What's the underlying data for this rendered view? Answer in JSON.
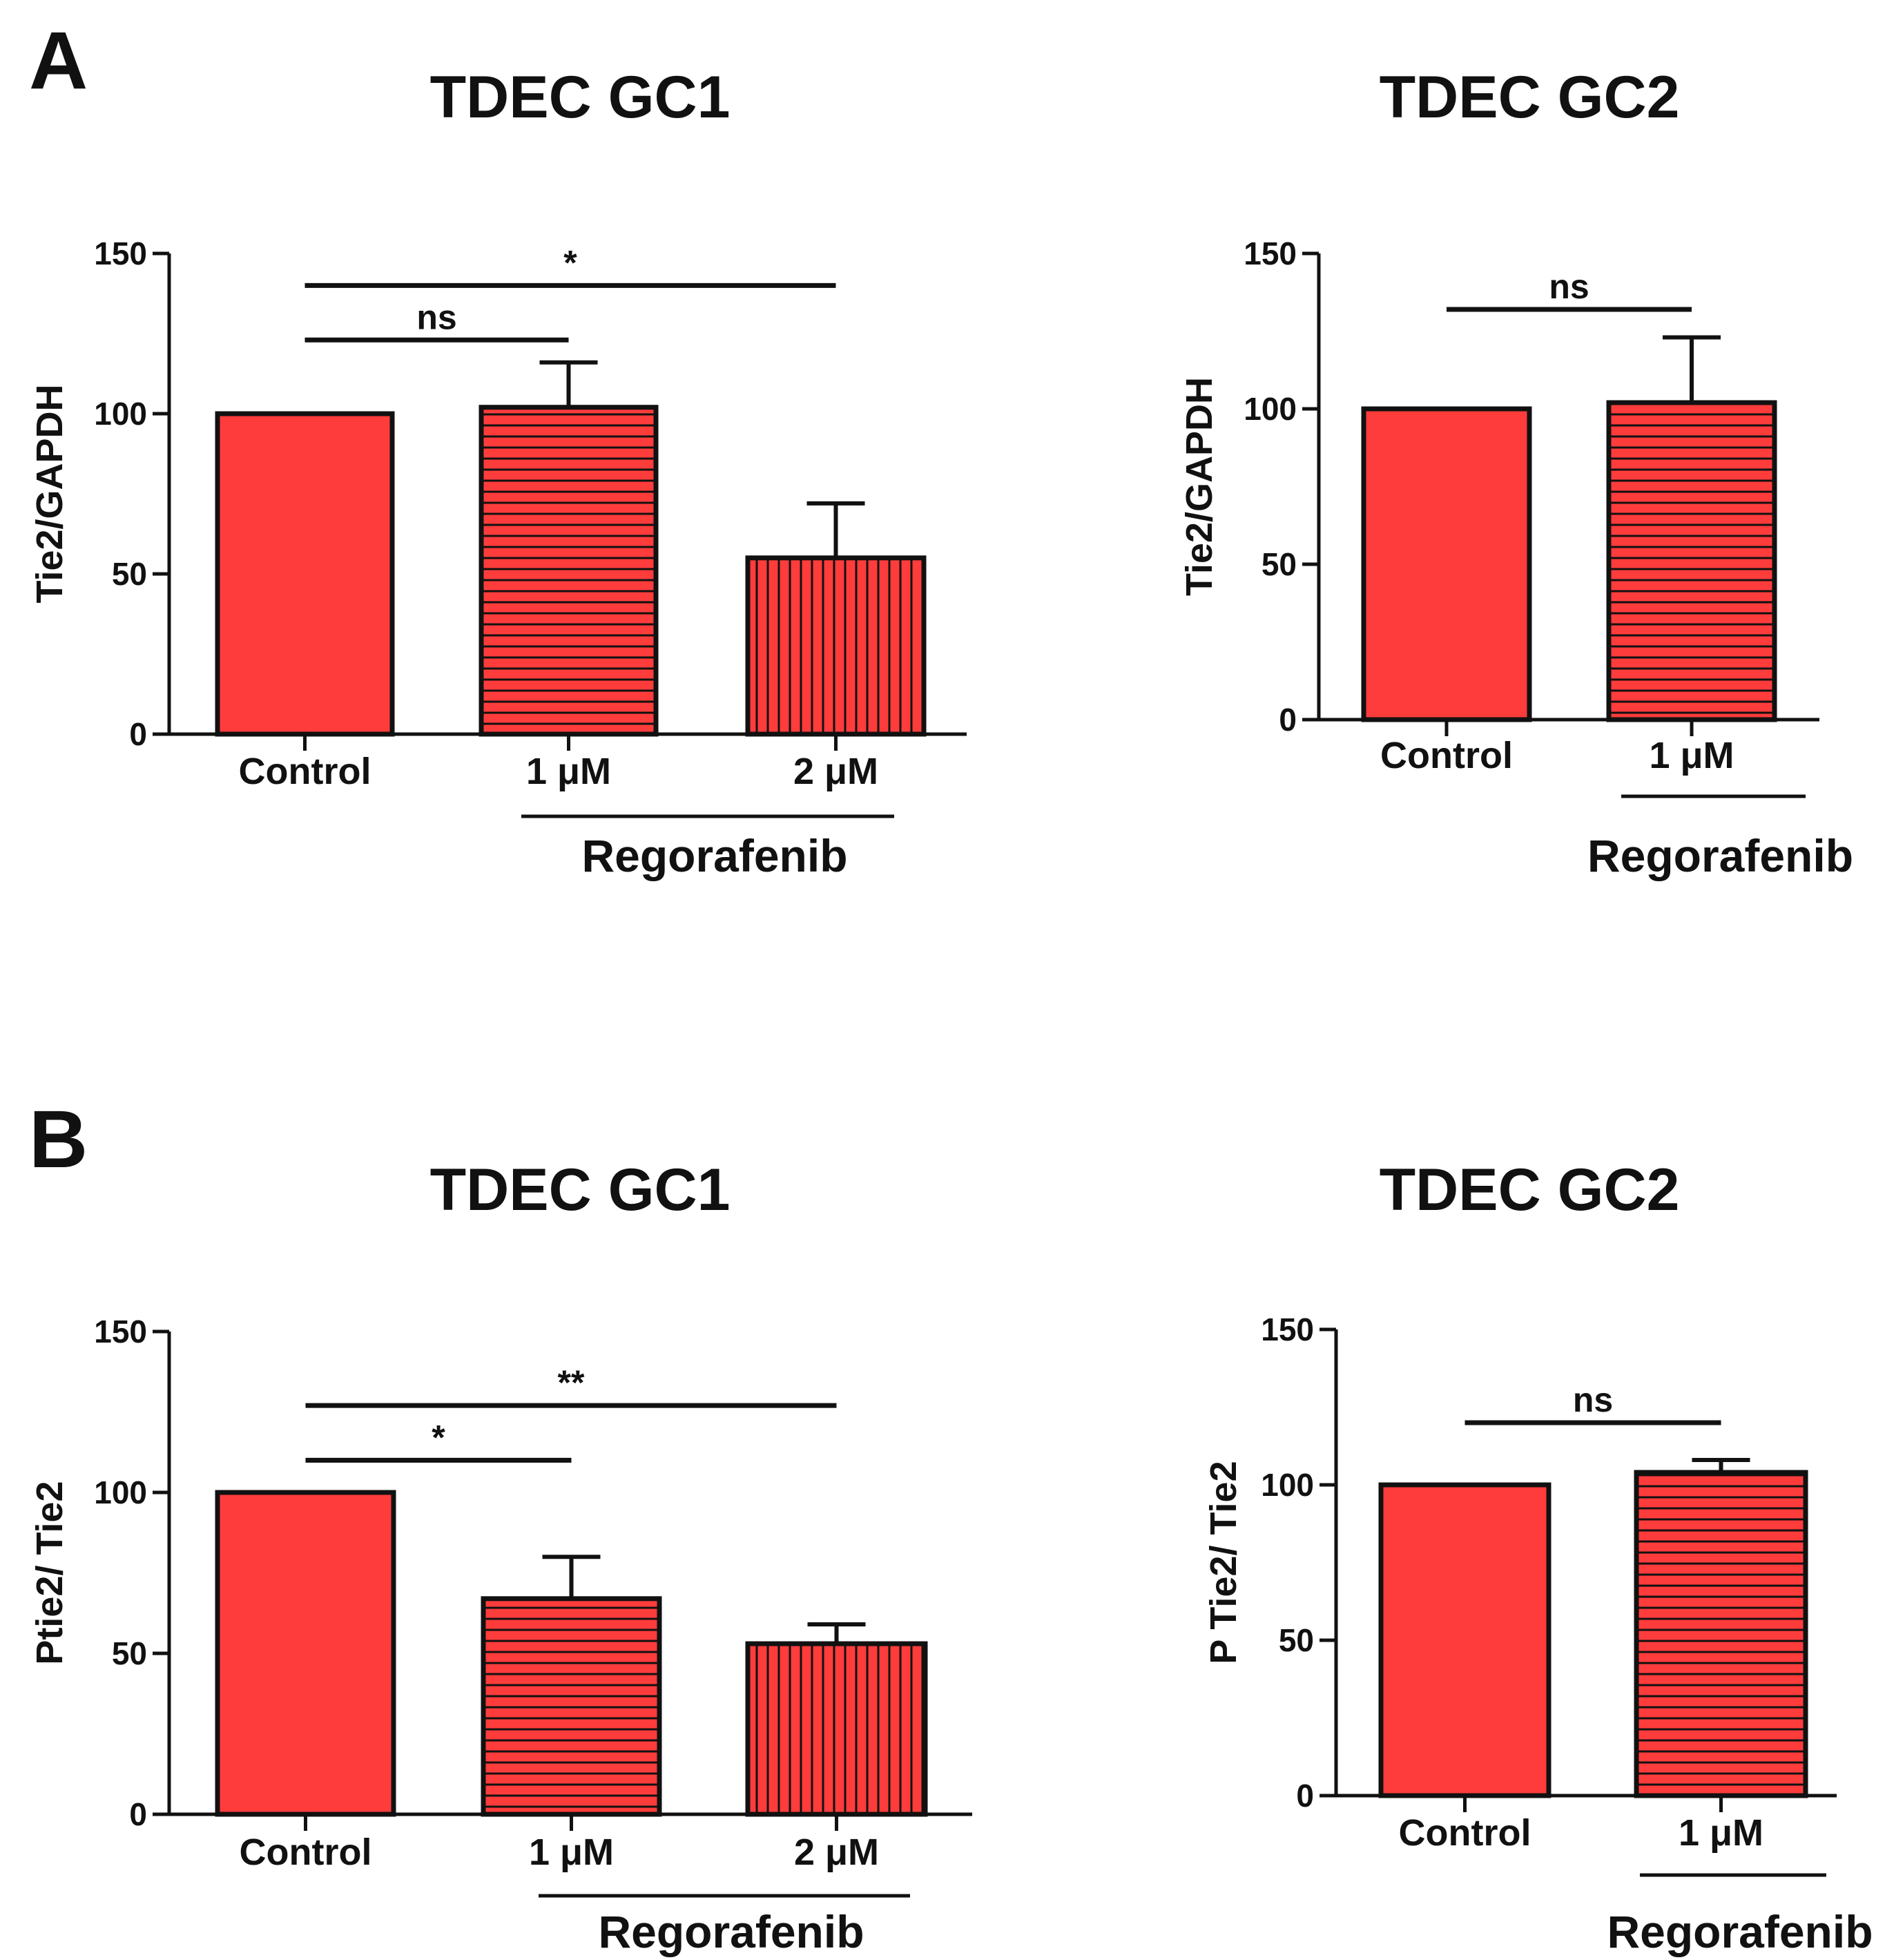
{
  "figure": {
    "panel_labels": [
      "A",
      "B"
    ],
    "colors": {
      "bar_fill": "#FF3C3C",
      "stroke": "#111111",
      "hatch": "#111111",
      "background": "#FFFFFF"
    }
  },
  "chart_data": [
    {
      "type": "bar",
      "panel": "A",
      "title": "TDEC GC1",
      "ylabel": "Tie2/GAPDH",
      "ylim": [
        0,
        150
      ],
      "yticks": [
        "0",
        "50",
        "100",
        "150"
      ],
      "categories": [
        "Control",
        "1 μM",
        "2 μM"
      ],
      "values": [
        100,
        102,
        55
      ],
      "errors": [
        0,
        14,
        17
      ],
      "patterns": [
        "solid",
        "horizontal",
        "vertical"
      ],
      "group_label": "Regorafenib",
      "group_span": [
        1,
        2
      ],
      "significance": [
        {
          "from": 0,
          "to": 1,
          "label": "ns",
          "level": 123
        },
        {
          "from": 0,
          "to": 2,
          "label": "*",
          "level": 140
        }
      ]
    },
    {
      "type": "bar",
      "panel": "A",
      "title": "TDEC GC2",
      "ylabel": "Tie2/GAPDH",
      "ylim": [
        0,
        150
      ],
      "yticks": [
        "0",
        "50",
        "100",
        "150"
      ],
      "categories": [
        "Control",
        "1 μM"
      ],
      "values": [
        100,
        102
      ],
      "errors": [
        0,
        21
      ],
      "patterns": [
        "solid",
        "horizontal"
      ],
      "group_label": "Regorafenib",
      "group_span": [
        1,
        1
      ],
      "significance": [
        {
          "from": 0,
          "to": 1,
          "label": "ns",
          "level": 132
        }
      ]
    },
    {
      "type": "bar",
      "panel": "B",
      "title": "TDEC GC1",
      "ylabel": "Ptie2/ Tie2",
      "ylim": [
        0,
        150
      ],
      "yticks": [
        "0",
        "50",
        "100",
        "150"
      ],
      "categories": [
        "Control",
        "1 μM",
        "2 μM"
      ],
      "values": [
        100,
        67,
        53
      ],
      "errors": [
        0,
        13,
        6
      ],
      "patterns": [
        "solid",
        "horizontal",
        "vertical"
      ],
      "group_label": "Regorafenib",
      "group_span": [
        1,
        2
      ],
      "significance": [
        {
          "from": 0,
          "to": 1,
          "label": "*",
          "level": 110
        },
        {
          "from": 0,
          "to": 2,
          "label": "**",
          "level": 127
        }
      ]
    },
    {
      "type": "bar",
      "panel": "B",
      "title": "TDEC GC2",
      "ylabel": "P Tie2/ Tie2",
      "ylim": [
        0,
        150
      ],
      "yticks": [
        "0",
        "50",
        "100",
        "150"
      ],
      "categories": [
        "Control",
        "1 μM"
      ],
      "values": [
        100,
        104
      ],
      "errors": [
        0,
        4
      ],
      "patterns": [
        "solid",
        "horizontal"
      ],
      "group_label": "Regorafenib",
      "group_span": [
        1,
        1
      ],
      "significance": [
        {
          "from": 0,
          "to": 1,
          "label": "ns",
          "level": 120
        }
      ]
    }
  ]
}
